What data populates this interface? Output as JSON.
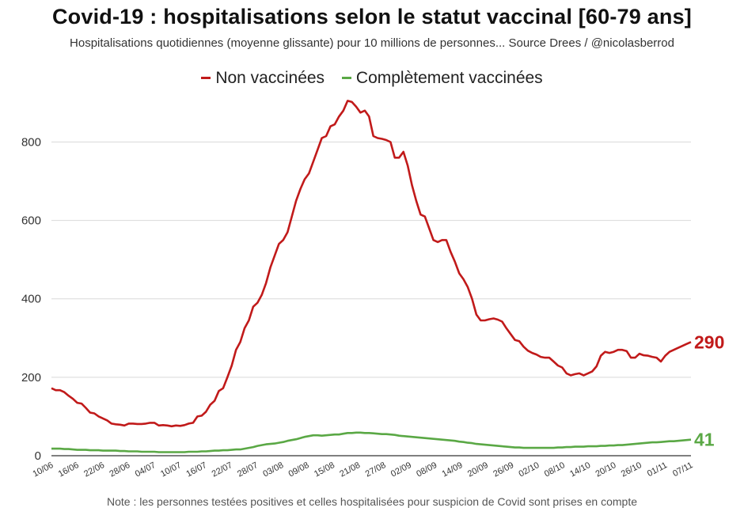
{
  "chart_data": {
    "type": "line",
    "title": "Covid-19 : hospitalisations selon le statut vaccinal [60-79 ans]",
    "subtitle": "Hospitalisations quotidiennes (moyenne glissante) pour 10 millions de personnes... Source Drees / @nicolasberrod",
    "note": "Note : les personnes testées positives et celles hospitalisées pour suspicion de Covid sont prises en compte",
    "xlabel": "",
    "ylabel": "",
    "ylim": [
      0,
      920
    ],
    "yticks": [
      0,
      200,
      400,
      600,
      800
    ],
    "grid": true,
    "legend_position": "top",
    "x_tick_labels": [
      "10/06",
      "16/06",
      "22/06",
      "28/06",
      "04/07",
      "10/07",
      "16/07",
      "22/07",
      "28/07",
      "03/08",
      "09/08",
      "15/08",
      "21/08",
      "27/08",
      "02/09",
      "08/09",
      "14/09",
      "20/09",
      "26/09",
      "02/10",
      "08/10",
      "14/10",
      "20/10",
      "26/10",
      "01/11",
      "07/11"
    ],
    "series": [
      {
        "name": "Non vaccinées",
        "color": "#c11a1a",
        "end_label": "290",
        "values": [
          172,
          167,
          167,
          162,
          153,
          145,
          135,
          133,
          122,
          110,
          108,
          100,
          95,
          90,
          82,
          80,
          79,
          77,
          82,
          82,
          81,
          81,
          82,
          84,
          84,
          77,
          78,
          77,
          75,
          77,
          76,
          78,
          82,
          84,
          100,
          102,
          112,
          130,
          140,
          165,
          172,
          200,
          230,
          270,
          290,
          325,
          345,
          380,
          390,
          410,
          440,
          480,
          510,
          540,
          550,
          570,
          610,
          650,
          680,
          705,
          720,
          750,
          780,
          810,
          815,
          840,
          845,
          865,
          880,
          905,
          902,
          890,
          875,
          880,
          865,
          815,
          810,
          808,
          805,
          800,
          760,
          760,
          775,
          740,
          690,
          650,
          615,
          610,
          580,
          550,
          545,
          550,
          550,
          520,
          495,
          465,
          450,
          430,
          400,
          360,
          345,
          345,
          348,
          350,
          347,
          342,
          325,
          310,
          295,
          292,
          278,
          268,
          262,
          258,
          252,
          250,
          250,
          240,
          230,
          225,
          210,
          205,
          208,
          210,
          205,
          210,
          215,
          228,
          255,
          265,
          262,
          265,
          270,
          270,
          267,
          250,
          250,
          260,
          256,
          255,
          252,
          250,
          240,
          255,
          265,
          270,
          275,
          280,
          285,
          290
        ]
      },
      {
        "name": "Complètement vaccinées",
        "color": "#5aa845",
        "end_label": "41",
        "values": [
          18,
          18,
          18,
          17,
          17,
          16,
          15,
          15,
          15,
          14,
          14,
          14,
          13,
          13,
          13,
          13,
          12,
          12,
          11,
          11,
          11,
          10,
          10,
          10,
          10,
          9,
          9,
          9,
          9,
          9,
          9,
          9,
          10,
          10,
          10,
          11,
          11,
          12,
          13,
          13,
          14,
          14,
          15,
          16,
          16,
          18,
          20,
          22,
          25,
          27,
          29,
          30,
          31,
          33,
          35,
          38,
          40,
          42,
          45,
          48,
          50,
          52,
          52,
          51,
          52,
          53,
          54,
          54,
          56,
          58,
          58,
          59,
          59,
          58,
          58,
          57,
          56,
          55,
          55,
          54,
          53,
          51,
          50,
          49,
          48,
          47,
          46,
          45,
          44,
          43,
          42,
          41,
          40,
          39,
          38,
          36,
          35,
          33,
          32,
          30,
          29,
          28,
          27,
          26,
          25,
          24,
          23,
          22,
          21,
          21,
          20,
          20,
          20,
          20,
          20,
          20,
          20,
          20,
          21,
          21,
          22,
          22,
          23,
          23,
          23,
          24,
          24,
          24,
          25,
          25,
          26,
          26,
          27,
          27,
          28,
          29,
          30,
          31,
          32,
          33,
          34,
          34,
          35,
          36,
          37,
          37,
          38,
          39,
          40,
          41
        ]
      }
    ]
  }
}
